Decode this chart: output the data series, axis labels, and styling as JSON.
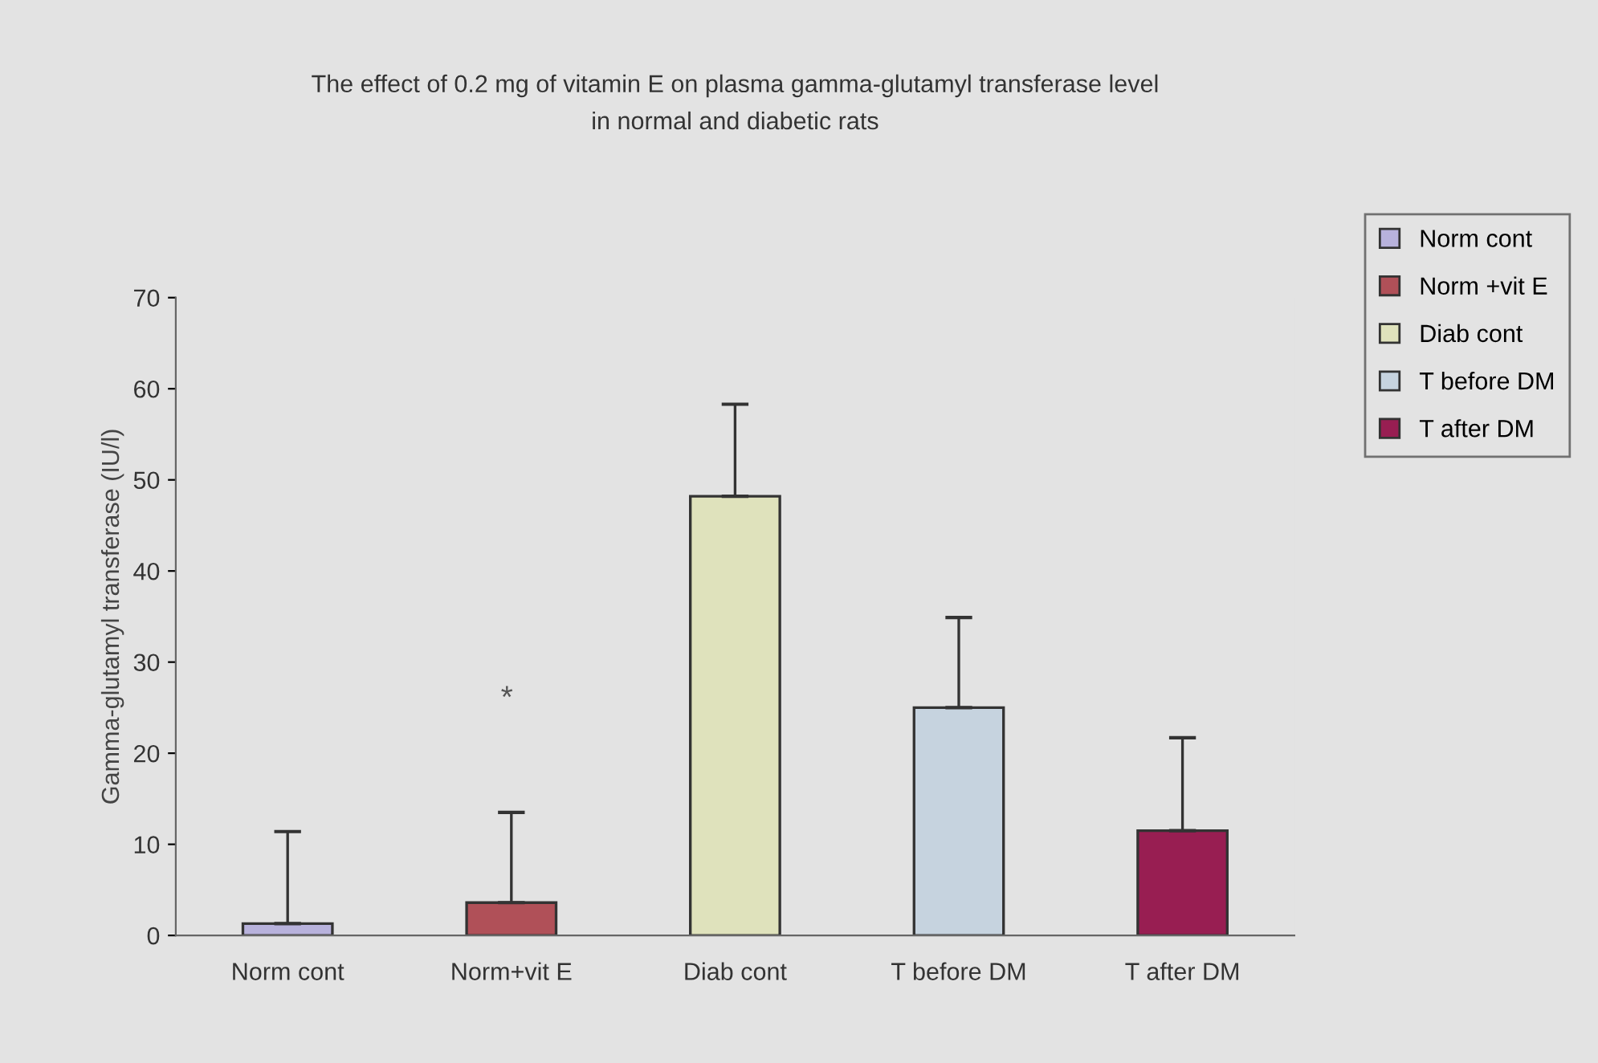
{
  "chart_data": {
    "type": "bar",
    "title": "The effect of 0.2 mg of vitamin E on plasma gamma-glutamyl transferase level\nin normal and diabetic rats",
    "ylabel": "Gamma-glutamyl transferase (IU/l)",
    "categories": [
      "Norm cont",
      "Norm+vit E",
      "Diab cont",
      "T before DM",
      "T after DM"
    ],
    "series": [
      {
        "name": "Norm cont",
        "color": "#b8b2dc",
        "values": [
          1.3,
          null,
          null,
          null,
          null
        ],
        "errors": [
          [
            1.3,
            11.4
          ],
          null,
          null,
          null,
          null
        ]
      },
      {
        "name": "Norm +vit E",
        "color": "#b05058",
        "values": [
          null,
          3.6,
          null,
          null,
          null
        ],
        "errors": [
          null,
          [
            3.6,
            13.5
          ],
          null,
          null,
          null
        ]
      },
      {
        "name": "Diab cont",
        "color": "#dfe2bc",
        "values": [
          null,
          null,
          48.2,
          null,
          null
        ],
        "errors": [
          null,
          null,
          [
            48.2,
            58.3
          ],
          null,
          null
        ]
      },
      {
        "name": "T before DM",
        "color": "#c6d3df",
        "values": [
          null,
          null,
          null,
          25,
          null
        ],
        "errors": [
          null,
          null,
          null,
          [
            25,
            34.9
          ],
          null
        ]
      },
      {
        "name": "T after DM",
        "color": "#981e52",
        "values": [
          null,
          null,
          null,
          null,
          11.5
        ],
        "errors": [
          null,
          null,
          null,
          null,
          [
            11.5,
            21.7
          ]
        ]
      }
    ],
    "annotations": [
      "*"
    ],
    "ylim": [
      0,
      70
    ],
    "yticks": [
      0,
      10,
      20,
      30,
      40,
      50,
      60,
      70
    ],
    "grid": false,
    "legend": "top right"
  }
}
